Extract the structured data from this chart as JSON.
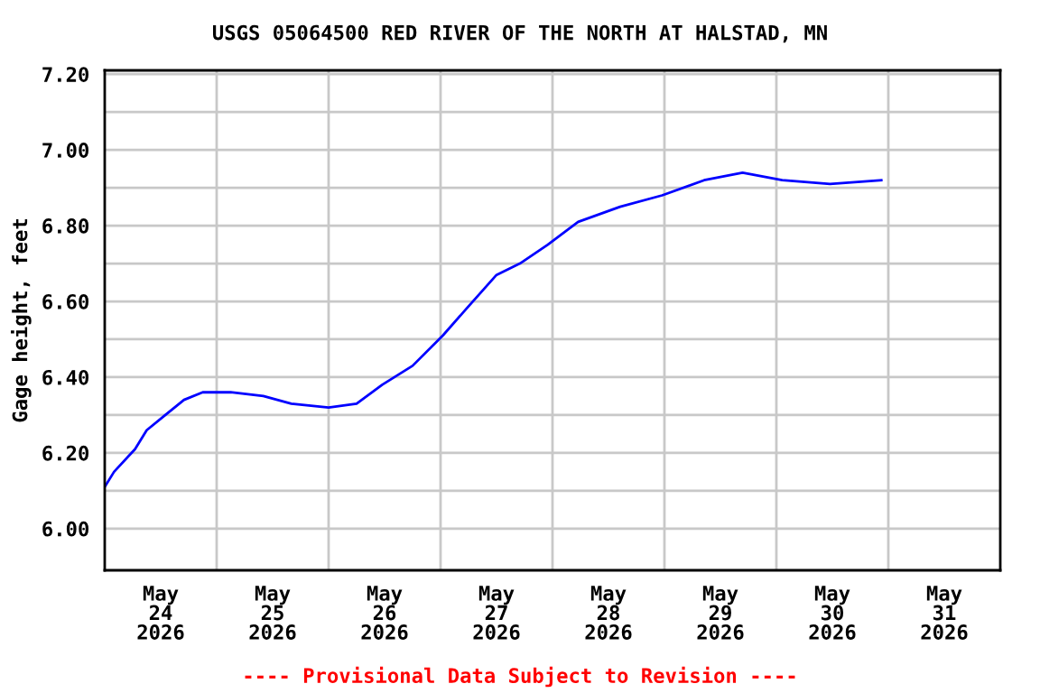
{
  "chart_data": {
    "type": "line",
    "title": "USGS 05064500 RED RIVER OF THE NORTH AT HALSTAD, MN",
    "ylabel": "Gage height, feet",
    "annotations": [
      "---- Provisional Data Subject to Revision ----"
    ],
    "x": [
      "2026-05-24T00:00",
      "2026-05-24T02:00",
      "2026-05-24T06:30",
      "2026-05-24T09:00",
      "2026-05-24T13:00",
      "2026-05-24T17:00",
      "2026-05-24T21:00",
      "2026-05-25T03:00",
      "2026-05-25T10:00",
      "2026-05-25T16:00",
      "2026-05-26T00:00",
      "2026-05-26T06:00",
      "2026-05-26T11:30",
      "2026-05-26T18:00",
      "2026-05-27T00:30",
      "2026-05-27T05:30",
      "2026-05-27T12:00",
      "2026-05-27T17:00",
      "2026-05-27T23:00",
      "2026-05-28T05:30",
      "2026-05-28T14:30",
      "2026-05-28T23:30",
      "2026-05-29T08:30",
      "2026-05-29T16:45",
      "2026-05-30T01:15",
      "2026-05-30T11:30",
      "2026-05-30T22:30"
    ],
    "series": [
      {
        "color": "#0000ff",
        "values": [
          6.11,
          6.15,
          6.21,
          6.26,
          6.3,
          6.34,
          6.36,
          6.36,
          6.35,
          6.33,
          6.32,
          6.33,
          6.38,
          6.43,
          6.51,
          6.58,
          6.67,
          6.7,
          6.75,
          6.81,
          6.85,
          6.88,
          6.92,
          6.94,
          6.92,
          6.91,
          6.92
        ]
      }
    ],
    "xlim": [
      "2026-05-24T00:00",
      "2026-06-01T00:00"
    ],
    "xticks": [
      {
        "value": "2026-05-24T12:00",
        "label": "May\n24\n2026"
      },
      {
        "value": "2026-05-25T00:00",
        "label": null
      },
      {
        "value": "2026-05-25T12:00",
        "label": "May\n25\n2026"
      },
      {
        "value": "2026-05-26T00:00",
        "label": null
      },
      {
        "value": "2026-05-26T12:00",
        "label": "May\n26\n2026"
      },
      {
        "value": "2026-05-27T00:00",
        "label": null
      },
      {
        "value": "2026-05-27T12:00",
        "label": "May\n27\n2026"
      },
      {
        "value": "2026-05-28T00:00",
        "label": null
      },
      {
        "value": "2026-05-28T12:00",
        "label": "May\n28\n2026"
      },
      {
        "value": "2026-05-29T00:00",
        "label": null
      },
      {
        "value": "2026-05-29T12:00",
        "label": "May\n29\n2026"
      },
      {
        "value": "2026-05-30T00:00",
        "label": null
      },
      {
        "value": "2026-05-30T12:00",
        "label": "May\n30\n2026"
      },
      {
        "value": "2026-05-31T00:00",
        "label": null
      },
      {
        "value": "2026-05-31T12:00",
        "label": "May\n31\n2026"
      }
    ],
    "ylim": [
      5.89,
      7.21
    ],
    "yticks": [
      {
        "value": 6.0,
        "label": "6.00"
      },
      {
        "value": 6.1,
        "label": null
      },
      {
        "value": 6.2,
        "label": "6.20"
      },
      {
        "value": 6.3,
        "label": null
      },
      {
        "value": 6.4,
        "label": "6.40"
      },
      {
        "value": 6.5,
        "label": null
      },
      {
        "value": 6.6,
        "label": "6.60"
      },
      {
        "value": 6.7,
        "label": null
      },
      {
        "value": 6.8,
        "label": "6.80"
      },
      {
        "value": 6.9,
        "label": null
      },
      {
        "value": 7.0,
        "label": "7.00"
      },
      {
        "value": 7.1,
        "label": null
      },
      {
        "value": 7.2,
        "label": "7.20"
      }
    ],
    "grid": true,
    "marker": "none",
    "line_style": "solid"
  }
}
